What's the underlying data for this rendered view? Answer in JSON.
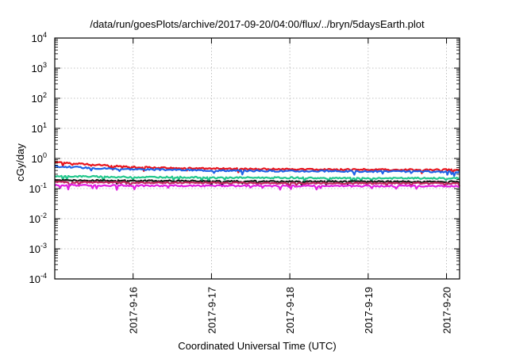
{
  "chart_data": {
    "type": "line",
    "title": "/data/run/goesPlots/archive/2017-09-20/04:00/flux/../bryn/5daysEarth.plot",
    "xlabel": "Coordinated Universal Time (UTC)",
    "ylabel": "cGy/day",
    "yscale": "log",
    "ylim": [
      0.0001,
      10000
    ],
    "yticks": [
      {
        "value": 0.0001,
        "base": "10",
        "exp": "-4"
      },
      {
        "value": 0.001,
        "base": "10",
        "exp": "-3"
      },
      {
        "value": 0.01,
        "base": "10",
        "exp": "-2"
      },
      {
        "value": 0.1,
        "base": "10",
        "exp": "-1"
      },
      {
        "value": 1,
        "base": "10",
        "exp": "0"
      },
      {
        "value": 10,
        "base": "10",
        "exp": "1"
      },
      {
        "value": 100,
        "base": "10",
        "exp": "2"
      },
      {
        "value": 1000,
        "base": "10",
        "exp": "3"
      },
      {
        "value": 10000,
        "base": "10",
        "exp": "4"
      }
    ],
    "xlim": [
      "2017-09-15T00:00",
      "2017-09-20T04:00"
    ],
    "xticks": [
      {
        "value": "2017-09-16T00:00",
        "label": "2017-9-16"
      },
      {
        "value": "2017-09-17T00:00",
        "label": "2017-9-17"
      },
      {
        "value": "2017-09-18T00:00",
        "label": "2017-9-18"
      },
      {
        "value": "2017-09-19T00:00",
        "label": "2017-9-19"
      },
      {
        "value": "2017-09-20T00:00",
        "label": "2017-9-20"
      }
    ],
    "grid": true,
    "x": [
      "2017-09-15T00:00",
      "2017-09-15T12:00",
      "2017-09-16T00:00",
      "2017-09-16T12:00",
      "2017-09-17T00:00",
      "2017-09-17T12:00",
      "2017-09-18T00:00",
      "2017-09-18T12:00",
      "2017-09-19T00:00",
      "2017-09-19T12:00",
      "2017-09-20T00:00",
      "2017-09-20T04:00"
    ],
    "series": [
      {
        "color": "#e8141c",
        "values": [
          0.75,
          0.62,
          0.52,
          0.48,
          0.46,
          0.45,
          0.44,
          0.43,
          0.43,
          0.42,
          0.42,
          0.41
        ]
      },
      {
        "color": "#1f63e6",
        "values": [
          0.55,
          0.48,
          0.44,
          0.42,
          0.4,
          0.39,
          0.38,
          0.38,
          0.37,
          0.37,
          0.36,
          0.36
        ]
      },
      {
        "color": "#23c78c",
        "values": [
          0.26,
          0.25,
          0.24,
          0.24,
          0.23,
          0.23,
          0.23,
          0.22,
          0.22,
          0.22,
          0.22,
          0.22
        ]
      },
      {
        "color": "#1a1a1a",
        "values": [
          0.19,
          0.185,
          0.18,
          0.18,
          0.175,
          0.175,
          0.17,
          0.17,
          0.17,
          0.17,
          0.17,
          0.17
        ]
      },
      {
        "color": "#c0275e",
        "values": [
          0.165,
          0.16,
          0.158,
          0.155,
          0.155,
          0.152,
          0.15,
          0.15,
          0.15,
          0.15,
          0.15,
          0.15
        ]
      },
      {
        "color": "#e21fe0",
        "values": [
          0.13,
          0.128,
          0.126,
          0.125,
          0.124,
          0.123,
          0.122,
          0.122,
          0.121,
          0.121,
          0.12,
          0.12
        ]
      }
    ]
  }
}
